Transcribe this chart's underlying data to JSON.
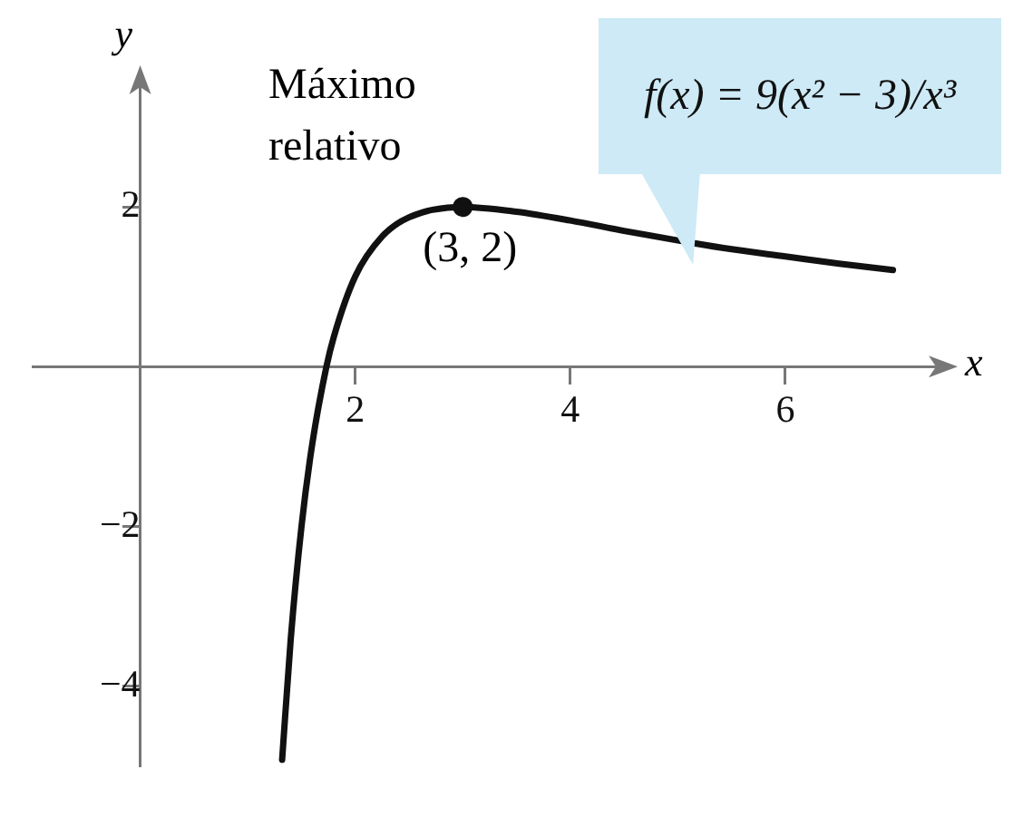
{
  "chart_data": {
    "type": "line",
    "xlabel": "x",
    "ylabel": "y",
    "xlim": [
      -1,
      7.4
    ],
    "ylim": [
      -5,
      3.5
    ],
    "xticks": [
      2,
      4,
      6
    ],
    "yticks": [
      {
        "value": -4,
        "label": "−4"
      },
      {
        "value": -2,
        "label": "−2"
      },
      {
        "value": 2,
        "label": "2"
      }
    ],
    "grid": false,
    "legend": false,
    "series": [
      {
        "name": "f(x) = 9(x² − 3)/x³",
        "type": "line",
        "color": "#111111",
        "marker": "none",
        "x": [
          1.32,
          1.4,
          1.5,
          1.6,
          1.732,
          1.8,
          2,
          2.25,
          2.5,
          3,
          3.5,
          4,
          4.5,
          5,
          5.5,
          6,
          6.5,
          7
        ],
        "values": [
          -4.92,
          -3.41,
          -2,
          -0.97,
          0,
          0.37,
          1.13,
          1.63,
          1.87,
          2,
          1.94,
          1.83,
          1.7,
          1.58,
          1.47,
          1.38,
          1.29,
          1.21
        ]
      },
      {
        "type": "scatter",
        "color": "#111111",
        "marker": "circle",
        "x": [
          3
        ],
        "values": [
          2
        ]
      }
    ],
    "annotations": [
      "Máximo relativo",
      {
        "text": "(3, 2)",
        "x": 3,
        "y": 2
      }
    ]
  }
}
